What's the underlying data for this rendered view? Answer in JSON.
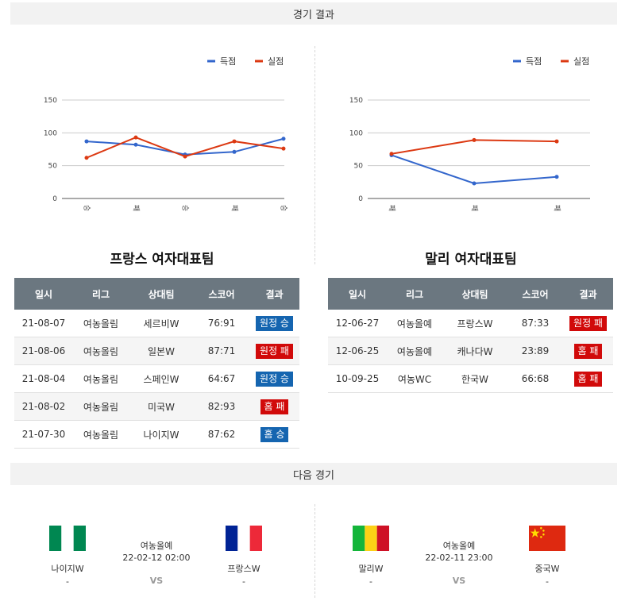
{
  "header": {
    "title": "경기 결과"
  },
  "legend": {
    "scored": "득점",
    "conceded": "실점"
  },
  "colors": {
    "scored": "#3366cc",
    "conceded": "#dc3912",
    "win": "#1565b0",
    "lose": "#d10a0a"
  },
  "chart_data": [
    {
      "type": "line",
      "categories": [
        "승",
        "패",
        "승",
        "패",
        "승"
      ],
      "series": [
        {
          "name": "득점",
          "values": [
            87,
            82,
            67,
            71,
            91
          ]
        },
        {
          "name": "실점",
          "values": [
            62,
            93,
            64,
            87,
            76
          ]
        }
      ],
      "ylim": [
        0,
        150
      ],
      "yticks": [
        0,
        50,
        100,
        150
      ],
      "legend_position": "top-right",
      "grid": true
    },
    {
      "type": "line",
      "categories": [
        "패",
        "패",
        "패"
      ],
      "series": [
        {
          "name": "득점",
          "values": [
            66,
            23,
            33
          ]
        },
        {
          "name": "실점",
          "values": [
            68,
            89,
            87
          ]
        }
      ],
      "ylim": [
        0,
        150
      ],
      "yticks": [
        0,
        50,
        100,
        150
      ],
      "legend_position": "top-right",
      "grid": true
    }
  ],
  "columns": [
    "일시",
    "리그",
    "상대팀",
    "스코어",
    "결과"
  ],
  "france": {
    "title": "프랑스 여자대표팀",
    "rows": [
      {
        "date": "21-08-07",
        "league": "여농올림",
        "opponent": "세르비W",
        "score": "76:91",
        "result": "원정 승"
      },
      {
        "date": "21-08-06",
        "league": "여농올림",
        "opponent": "일본W",
        "score": "87:71",
        "result": "원정 패"
      },
      {
        "date": "21-08-04",
        "league": "여농올림",
        "opponent": "스페인W",
        "score": "64:67",
        "result": "원정 승"
      },
      {
        "date": "21-08-02",
        "league": "여농올림",
        "opponent": "미국W",
        "score": "82:93",
        "result": "홈 패"
      },
      {
        "date": "21-07-30",
        "league": "여농올림",
        "opponent": "나이지W",
        "score": "87:62",
        "result": "홈 승"
      }
    ]
  },
  "mali": {
    "title": "말리 여자대표팀",
    "rows": [
      {
        "date": "12-06-27",
        "league": "여농올예",
        "opponent": "프랑스W",
        "score": "87:33",
        "result": "원정 패"
      },
      {
        "date": "12-06-25",
        "league": "여농올예",
        "opponent": "캐나다W",
        "score": "23:89",
        "result": "홈 패"
      },
      {
        "date": "10-09-25",
        "league": "여농WC",
        "opponent": "한국W",
        "score": "66:68",
        "result": "홈 패"
      }
    ]
  },
  "next": {
    "title": "다음 경기",
    "matches": [
      {
        "home": "나이지W",
        "home_sub": "-",
        "away": "프랑스W",
        "away_sub": "-",
        "league": "여농올예",
        "datetime": "22-02-12 02:00",
        "vs": "VS"
      },
      {
        "home": "말리W",
        "home_sub": "-",
        "away": "중국W",
        "away_sub": "-",
        "league": "여농올예",
        "datetime": "22-02-11 23:00",
        "vs": "VS"
      }
    ]
  }
}
